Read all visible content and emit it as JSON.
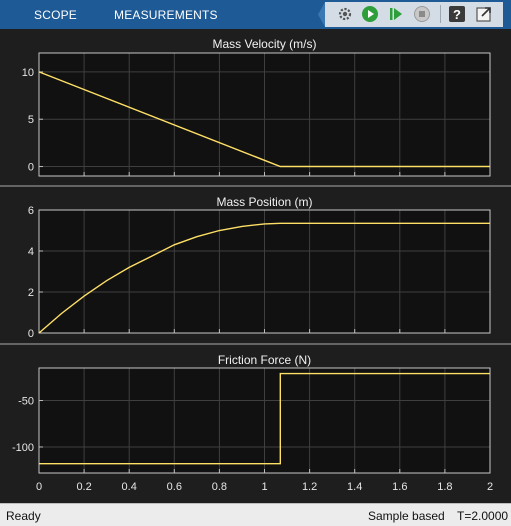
{
  "toolbar": {
    "tabs": [
      {
        "label": "SCOPE"
      },
      {
        "label": "MEASUREMENTS"
      }
    ],
    "buttons": [
      {
        "icon": "settings-gear-icon"
      },
      {
        "icon": "run-icon"
      },
      {
        "icon": "step-forward-icon"
      },
      {
        "icon": "stop-icon"
      },
      {
        "icon": "help-icon"
      },
      {
        "icon": "undock-icon"
      }
    ],
    "accent": "#1d5a96"
  },
  "chart_data": [
    {
      "type": "line",
      "title": "Mass Velocity (m/s)",
      "xlim": [
        0,
        2
      ],
      "ylim": [
        -1,
        12
      ],
      "xticks": [
        0,
        0.2,
        0.4,
        0.6,
        0.8,
        1,
        1.2,
        1.4,
        1.6,
        1.8,
        2
      ],
      "yticks": [
        0,
        5,
        10
      ],
      "show_xtick_labels": false,
      "grid": true,
      "color": "#ffe066",
      "series": [
        {
          "x": [
            0,
            1.07,
            2
          ],
          "y": [
            10,
            0,
            0
          ]
        }
      ]
    },
    {
      "type": "line",
      "title": "Mass Position (m)",
      "xlim": [
        0,
        2
      ],
      "ylim": [
        0,
        6
      ],
      "xticks": [
        0,
        0.2,
        0.4,
        0.6,
        0.8,
        1,
        1.2,
        1.4,
        1.6,
        1.8,
        2
      ],
      "yticks": [
        0,
        2,
        4,
        6
      ],
      "show_xtick_labels": false,
      "grid": true,
      "color": "#ffe066",
      "series": [
        {
          "x": [
            0,
            0.1,
            0.2,
            0.3,
            0.4,
            0.5,
            0.6,
            0.7,
            0.8,
            0.9,
            1.0,
            1.07,
            1.2,
            1.4,
            1.6,
            1.8,
            2.0
          ],
          "y": [
            0,
            0.95,
            1.8,
            2.55,
            3.2,
            3.75,
            4.3,
            4.7,
            5.0,
            5.2,
            5.32,
            5.35,
            5.35,
            5.35,
            5.35,
            5.35,
            5.35
          ]
        }
      ]
    },
    {
      "type": "line",
      "title": "Friction Force (N)",
      "xlim": [
        0,
        2
      ],
      "ylim": [
        -128,
        -15
      ],
      "xticks": [
        0,
        0.2,
        0.4,
        0.6,
        0.8,
        1,
        1.2,
        1.4,
        1.6,
        1.8,
        2
      ],
      "xtick_labels": [
        "0",
        "0.2",
        "0.4",
        "0.6",
        "0.8",
        "1",
        "1.2",
        "1.4",
        "1.6",
        "1.8",
        "2"
      ],
      "yticks": [
        -50,
        -100
      ],
      "show_xtick_labels": true,
      "grid": true,
      "color": "#ffe066",
      "series": [
        {
          "x": [
            0,
            1.07,
            1.07,
            2
          ],
          "y": [
            -118,
            -118,
            -21,
            -21
          ]
        }
      ]
    }
  ],
  "status": {
    "left": "Ready",
    "mode": "Sample based",
    "time": "T=2.0000"
  }
}
